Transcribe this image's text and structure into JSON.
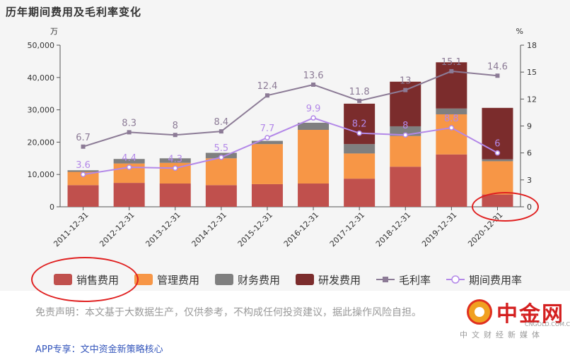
{
  "title": "历年期间费用及毛利率变化",
  "chart_data": {
    "type": "bar",
    "categories": [
      "2011-12-31",
      "2012-12-31",
      "2013-12-31",
      "2014-12-31",
      "2015-12-31",
      "2016-12-31",
      "2017-12-31",
      "2018-12-31",
      "2019-12-31",
      "2020-12-31"
    ],
    "left_axis_unit": "万",
    "right_axis_unit": "%",
    "ylim_left": [
      0,
      50000
    ],
    "yticks_left": [
      "0",
      "10,000",
      "20,000",
      "30,000",
      "40,000",
      "50,000"
    ],
    "ylim_right": [
      0,
      18
    ],
    "yticks_right": [
      "0",
      "3",
      "6",
      "9",
      "12",
      "15",
      "18"
    ],
    "stacked_series": [
      {
        "name": "销售费用",
        "color": "#c0504d",
        "values": [
          6700,
          7400,
          7200,
          6700,
          7000,
          7200,
          8700,
          12400,
          16200,
          3800
        ]
      },
      {
        "name": "管理费用",
        "color": "#f79646",
        "values": [
          4100,
          6000,
          6400,
          8300,
          12400,
          16600,
          7800,
          9500,
          12400,
          10300
        ]
      },
      {
        "name": "财务费用",
        "color": "#7f7f7f",
        "values": [
          500,
          1400,
          1400,
          1700,
          1000,
          2200,
          2900,
          3000,
          1800,
          600
        ]
      },
      {
        "name": "研发费用",
        "color": "#7b2c2c",
        "values": [
          0,
          0,
          0,
          0,
          0,
          0,
          12500,
          13800,
          14300,
          15900
        ]
      }
    ],
    "line_series": [
      {
        "name": "毛利率",
        "color": "#8c7b96",
        "values": [
          6.7,
          8.3,
          8,
          8.4,
          12.4,
          13.6,
          11.8,
          13,
          15.1,
          14.6
        ],
        "labels": [
          "6.7",
          "8.3",
          "8",
          "8.4",
          "12.4",
          "13.6",
          "11.8",
          "13",
          "15.1",
          "14.6"
        ]
      },
      {
        "name": "期间费用率",
        "color": "#b388e8",
        "values": [
          3.6,
          4.4,
          4.3,
          5.5,
          7.7,
          9.9,
          8.2,
          8,
          8.8,
          6
        ],
        "labels": [
          "3.6",
          "4.4",
          "4.3",
          "5.5",
          "7.7",
          "9.9",
          "8.2",
          "8",
          "8.8",
          "6"
        ]
      }
    ],
    "legend": [
      "销售费用",
      "管理费用",
      "财务费用",
      "研发费用",
      "毛利率",
      "期间费用率"
    ],
    "legend_position": "bottom",
    "grid": false
  },
  "disclaimer": "免责声明：本文基于大数据生产，仅供参考，不构成任何投资建议，据此操作风险自担。",
  "app_link": "APP专享：文中资金新策略核心",
  "logo": {
    "name": "中金网",
    "domain": "CNGOLD.COM.CN",
    "sub": "中文财经新媒体",
    "accent": "#d42020"
  },
  "annotation_color": "#e02020"
}
